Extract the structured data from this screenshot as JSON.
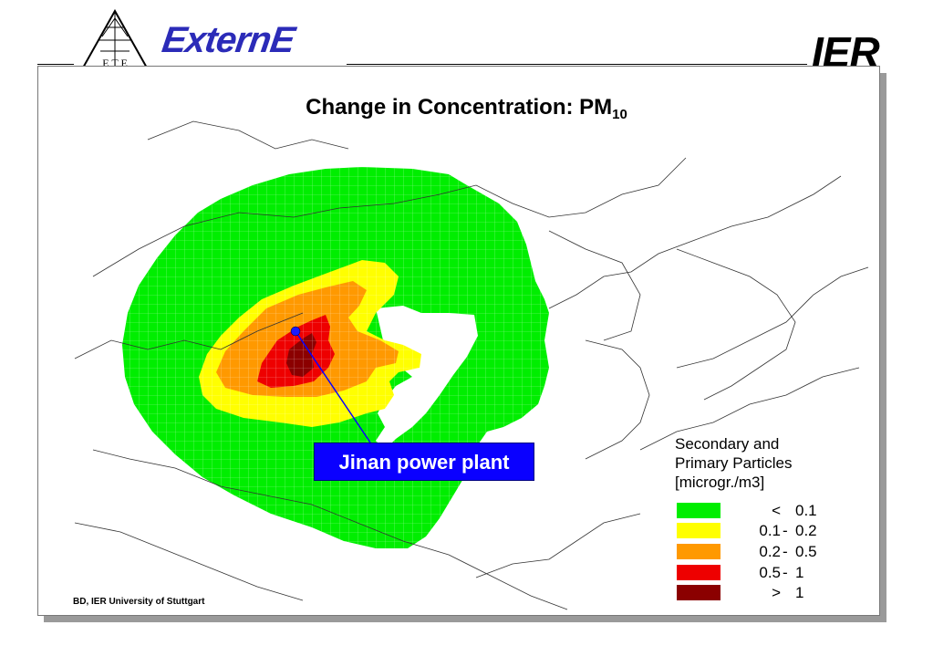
{
  "header": {
    "logo_left_text": "E T E",
    "logo_externe": "ExternE",
    "logo_ier": "IER"
  },
  "title": {
    "main": "Change in Concentration: PM",
    "subscript": "10"
  },
  "map": {
    "callout_label": "Jinan power plant",
    "legend": {
      "title_lines": [
        "Secondary and",
        "Primary Particles",
        "[microgr./m3]"
      ],
      "entries": [
        {
          "lo": "<",
          "sep": "",
          "hi": "0.1",
          "color": "#00ee00"
        },
        {
          "lo": "0.1",
          "sep": "-",
          "hi": "0.2",
          "color": "#ffff00"
        },
        {
          "lo": "0.2",
          "sep": "-",
          "hi": "0.5",
          "color": "#ff9900"
        },
        {
          "lo": "0.5",
          "sep": "-",
          "hi": "1",
          "color": "#ee0000"
        },
        {
          "lo": ">",
          "sep": "",
          "hi": "1",
          "color": "#8b0000"
        }
      ]
    },
    "marker_color": "#1a1aff"
  },
  "footer": {
    "credit": "BD, IER University of Stuttgart"
  }
}
